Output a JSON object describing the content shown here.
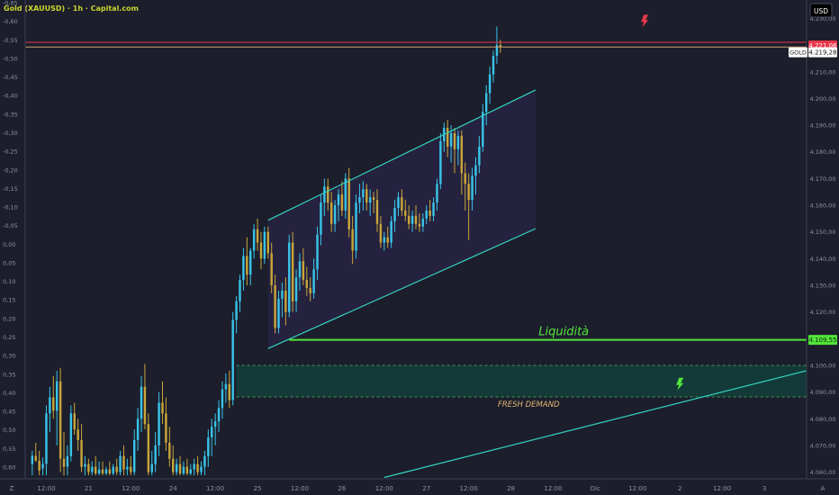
{
  "chart_data": {
    "type": "candlestick",
    "title": "Gold (XAUUSD) · 1h · Capital.com",
    "currency": "USD",
    "symbol_label": "GOLD",
    "colors": {
      "background": "#1c1e2c",
      "up": "#38c4e8",
      "down": "#c9a53a",
      "channel": "#34d3bf",
      "liquidity": "#53e53a",
      "red_line": "#e8374b",
      "tan_line": "#c9a06c",
      "axis_text": "#8b93a6",
      "zone_fill": "#133d3b",
      "zone_border": "#3f9a4f",
      "demand_text": "#e0b871"
    },
    "right_axis": {
      "labels": [
        "4.230,00",
        "4.220,00",
        "4.210,00",
        "4.200,00",
        "4.190,00",
        "4.180,00",
        "4.170,00",
        "4.160,00",
        "4.150,00",
        "4.140,00",
        "4.130,00",
        "4.120,00",
        "4.110,00",
        "4.100,00",
        "4.090,00",
        "4.080,00",
        "4.070,00",
        "4.060,00"
      ],
      "values": [
        4230,
        4220,
        4210,
        4200,
        4190,
        4180,
        4170,
        4160,
        4150,
        4140,
        4130,
        4120,
        4110,
        4100,
        4090,
        4080,
        4070,
        4060
      ],
      "range": [
        4057.5,
        4236.9
      ]
    },
    "left_axis": {
      "labels": [
        "-0,65",
        "-0,60",
        "-0,55",
        "-0,50",
        "-0,45",
        "-0,40",
        "-0,35",
        "-0,30",
        "-0,25",
        "-0,20",
        "-0,15",
        "-0,10",
        "-0,05",
        "0,00",
        "0,05",
        "0,10",
        "0,15",
        "0,20",
        "0,25",
        "0,30",
        "0,35",
        "0,40",
        "0,45",
        "0,50",
        "0,55",
        "0,60"
      ],
      "unit": "%"
    },
    "time_axis": {
      "labels": [
        "12:00",
        "21",
        "12:00",
        "24",
        "12:00",
        "25",
        "12:00",
        "26",
        "12:00",
        "27",
        "12:00",
        "28",
        "12:00",
        "Dic",
        "12:00",
        "2",
        "12:00",
        "3"
      ],
      "hours_from_start": [
        0,
        12,
        24,
        36,
        48,
        60,
        72,
        84,
        96,
        108,
        120,
        132,
        144,
        156,
        168,
        180,
        192,
        204
      ],
      "view_hours": [
        -6,
        216
      ]
    },
    "price_tags": {
      "red": "4.221,06",
      "current": "4.219,28",
      "liquidity": "4.109,55"
    },
    "levels": {
      "red_line": 4221.06,
      "current": 4219.28,
      "liquidity": 4109.55
    },
    "liquidity_label": "Liquidità",
    "liquidity_start_hour": 69,
    "demand_zone": {
      "label": "FRESH DEMAND",
      "top": 4100.0,
      "bottom": 4088.2,
      "start_hour": 54
    },
    "channel": {
      "upper": [
        [
          63,
          4154.4
        ],
        [
          139,
          4203.2
        ]
      ],
      "lower": [
        [
          63,
          4106.3
        ],
        [
          139,
          4151.2
        ]
      ]
    },
    "support_line": [
      [
        96,
        4058.0
      ],
      [
        216,
        4098.0
      ]
    ],
    "bolts": {
      "sell_price": 4229.0,
      "sell_hour": 170,
      "buy_price": 4093.0,
      "buy_hour": 180
    },
    "candles": [
      {
        "t": -4,
        "o": 4063.0,
        "h": 4068.0,
        "l": 4058.8,
        "c": 4066.1
      },
      {
        "t": -3,
        "o": 4066.1,
        "h": 4071.0,
        "l": 4063.8,
        "c": 4064.3
      },
      {
        "t": -2,
        "o": 4064.3,
        "h": 4068.0,
        "l": 4058.8,
        "c": 4060.6
      },
      {
        "t": -1,
        "o": 4061.4,
        "h": 4065.5,
        "l": 4058.8,
        "c": 4063.1
      },
      {
        "t": 0,
        "o": 4063.1,
        "h": 4085.0,
        "l": 4058.8,
        "c": 4082.0
      },
      {
        "t": 1,
        "o": 4082.0,
        "h": 4092.0,
        "l": 4075.0,
        "c": 4088.0
      },
      {
        "t": 2,
        "o": 4088.0,
        "h": 4096.0,
        "l": 4080.0,
        "c": 4083.0
      },
      {
        "t": 3,
        "o": 4083.0,
        "h": 4098.0,
        "l": 4070.0,
        "c": 4094.0
      },
      {
        "t": 4,
        "o": 4094.0,
        "h": 4099.0,
        "l": 4060.0,
        "c": 4065.0
      },
      {
        "t": 5,
        "o": 4065.0,
        "h": 4075.0,
        "l": 4058.8,
        "c": 4062.0
      },
      {
        "t": 6,
        "o": 4062.0,
        "h": 4070.0,
        "l": 4058.8,
        "c": 4066.0
      },
      {
        "t": 7,
        "o": 4066.0,
        "h": 4085.0,
        "l": 4064.0,
        "c": 4082.0
      },
      {
        "t": 8,
        "o": 4082.0,
        "h": 4086.0,
        "l": 4074.0,
        "c": 4076.0
      },
      {
        "t": 9,
        "o": 4076.0,
        "h": 4080.0,
        "l": 4068.0,
        "c": 4072.0
      },
      {
        "t": 10,
        "o": 4072.0,
        "h": 4078.0,
        "l": 4060.0,
        "c": 4062.0
      },
      {
        "t": 11,
        "o": 4062.0,
        "h": 4066.0,
        "l": 4058.8,
        "c": 4063.0
      },
      {
        "t": 12,
        "o": 4063.0,
        "h": 4065.0,
        "l": 4058.8,
        "c": 4060.0
      },
      {
        "t": 13,
        "o": 4060.0,
        "h": 4064.0,
        "l": 4058.8,
        "c": 4062.0
      },
      {
        "t": 14,
        "o": 4062.0,
        "h": 4066.0,
        "l": 4058.8,
        "c": 4059.5
      },
      {
        "t": 15,
        "o": 4059.5,
        "h": 4064.0,
        "l": 4058.8,
        "c": 4061.0
      },
      {
        "t": 16,
        "o": 4061.0,
        "h": 4064.0,
        "l": 4058.8,
        "c": 4059.5
      },
      {
        "t": 17,
        "o": 4059.5,
        "h": 4062.0,
        "l": 4058.8,
        "c": 4061.0
      },
      {
        "t": 18,
        "o": 4061.0,
        "h": 4064.0,
        "l": 4058.8,
        "c": 4059.5
      },
      {
        "t": 19,
        "o": 4059.5,
        "h": 4063.0,
        "l": 4058.8,
        "c": 4062.0
      },
      {
        "t": 20,
        "o": 4062.0,
        "h": 4065.0,
        "l": 4058.8,
        "c": 4060.0
      },
      {
        "t": 21,
        "o": 4060.0,
        "h": 4068.0,
        "l": 4058.8,
        "c": 4066.0
      },
      {
        "t": 22,
        "o": 4066.0,
        "h": 4070.0,
        "l": 4058.8,
        "c": 4061.0
      },
      {
        "t": 23,
        "o": 4061.0,
        "h": 4065.0,
        "l": 4058.8,
        "c": 4062.0
      },
      {
        "t": 24,
        "o": 4062.0,
        "h": 4066.0,
        "l": 4058.8,
        "c": 4060.0
      },
      {
        "t": 25,
        "o": 4060.0,
        "h": 4076.0,
        "l": 4058.8,
        "c": 4072.0
      },
      {
        "t": 26,
        "o": 4072.0,
        "h": 4084.0,
        "l": 4068.0,
        "c": 4080.0
      },
      {
        "t": 27,
        "o": 4080.0,
        "h": 4096.0,
        "l": 4075.0,
        "c": 4092.0
      },
      {
        "t": 28,
        "o": 4092.0,
        "h": 4100.5,
        "l": 4076.0,
        "c": 4078.0
      },
      {
        "t": 29,
        "o": 4078.0,
        "h": 4082.0,
        "l": 4058.8,
        "c": 4060.0
      },
      {
        "t": 30,
        "o": 4060.0,
        "h": 4068.0,
        "l": 4058.8,
        "c": 4063.0
      },
      {
        "t": 31,
        "o": 4063.0,
        "h": 4075.0,
        "l": 4060.0,
        "c": 4070.0
      },
      {
        "t": 32,
        "o": 4070.0,
        "h": 4090.0,
        "l": 4066.0,
        "c": 4086.0
      },
      {
        "t": 33,
        "o": 4086.0,
        "h": 4094.0,
        "l": 4078.0,
        "c": 4082.0
      },
      {
        "t": 34,
        "o": 4082.0,
        "h": 4088.0,
        "l": 4068.0,
        "c": 4071.0
      },
      {
        "t": 35,
        "o": 4071.0,
        "h": 4077.0,
        "l": 4062.0,
        "c": 4065.0
      },
      {
        "t": 36,
        "o": 4065.0,
        "h": 4070.0,
        "l": 4058.8,
        "c": 4060.0
      },
      {
        "t": 37,
        "o": 4060.0,
        "h": 4065.0,
        "l": 4058.8,
        "c": 4063.0
      },
      {
        "t": 38,
        "o": 4063.0,
        "h": 4066.0,
        "l": 4058.8,
        "c": 4059.5
      },
      {
        "t": 39,
        "o": 4059.5,
        "h": 4064.0,
        "l": 4058.8,
        "c": 4062.0
      },
      {
        "t": 40,
        "o": 4062.0,
        "h": 4065.0,
        "l": 4058.8,
        "c": 4059.5
      },
      {
        "t": 41,
        "o": 4059.5,
        "h": 4063.0,
        "l": 4058.8,
        "c": 4061.0
      },
      {
        "t": 42,
        "o": 4061.0,
        "h": 4065.0,
        "l": 4058.8,
        "c": 4063.0
      },
      {
        "t": 43,
        "o": 4063.0,
        "h": 4066.0,
        "l": 4058.8,
        "c": 4060.0
      },
      {
        "t": 44,
        "o": 4060.0,
        "h": 4064.0,
        "l": 4058.8,
        "c": 4062.0
      },
      {
        "t": 45,
        "o": 4062.0,
        "h": 4068.0,
        "l": 4058.8,
        "c": 4066.0
      },
      {
        "t": 46,
        "o": 4066.0,
        "h": 4076.0,
        "l": 4062.0,
        "c": 4073.0
      },
      {
        "t": 47,
        "o": 4073.0,
        "h": 4080.0,
        "l": 4066.0,
        "c": 4077.0
      },
      {
        "t": 48,
        "o": 4077.0,
        "h": 4082.0,
        "l": 4070.0,
        "c": 4079.0
      },
      {
        "t": 49,
        "o": 4079.0,
        "h": 4087.0,
        "l": 4075.0,
        "c": 4084.0
      },
      {
        "t": 50,
        "o": 4084.0,
        "h": 4094.0,
        "l": 4080.0,
        "c": 4091.0
      },
      {
        "t": 51,
        "o": 4091.0,
        "h": 4097.0,
        "l": 4086.0,
        "c": 4093.0
      },
      {
        "t": 52,
        "o": 4093.0,
        "h": 4098.0,
        "l": 4084.0,
        "c": 4087.0
      },
      {
        "t": 53,
        "o": 4087.0,
        "h": 4120.0,
        "l": 4085.0,
        "c": 4117.0
      },
      {
        "t": 54,
        "o": 4117.0,
        "h": 4126.0,
        "l": 4112.0,
        "c": 4124.0
      },
      {
        "t": 55,
        "o": 4124.0,
        "h": 4134.0,
        "l": 4120.0,
        "c": 4132.0
      },
      {
        "t": 56,
        "o": 4132.0,
        "h": 4144.0,
        "l": 4128.0,
        "c": 4141.0
      },
      {
        "t": 57,
        "o": 4141.0,
        "h": 4148.0,
        "l": 4130.0,
        "c": 4134.0
      },
      {
        "t": 58,
        "o": 4134.0,
        "h": 4144.0,
        "l": 4130.0,
        "c": 4143.0
      },
      {
        "t": 59,
        "o": 4143.0,
        "h": 4153.0,
        "l": 4140.0,
        "c": 4151.0
      },
      {
        "t": 60,
        "o": 4151.0,
        "h": 4155.0,
        "l": 4143.0,
        "c": 4146.0
      },
      {
        "t": 61,
        "o": 4146.0,
        "h": 4150.0,
        "l": 4136.0,
        "c": 4140.0
      },
      {
        "t": 62,
        "o": 4140.0,
        "h": 4152.0,
        "l": 4138.0,
        "c": 4150.0
      },
      {
        "t": 63,
        "o": 4150.0,
        "h": 4152.0,
        "l": 4140.0,
        "c": 4142.0
      },
      {
        "t": 64,
        "o": 4142.0,
        "h": 4146.0,
        "l": 4127.0,
        "c": 4130.0
      },
      {
        "t": 65,
        "o": 4130.0,
        "h": 4134.0,
        "l": 4112.0,
        "c": 4114.0
      },
      {
        "t": 66,
        "o": 4114.0,
        "h": 4128.0,
        "l": 4112.0,
        "c": 4125.0
      },
      {
        "t": 67,
        "o": 4125.0,
        "h": 4131.0,
        "l": 4118.0,
        "c": 4128.0
      },
      {
        "t": 68,
        "o": 4128.0,
        "h": 4133.0,
        "l": 4115.0,
        "c": 4120.0
      },
      {
        "t": 69,
        "o": 4120.0,
        "h": 4149.0,
        "l": 4118.0,
        "c": 4146.0
      },
      {
        "t": 70,
        "o": 4146.0,
        "h": 4150.0,
        "l": 4120.0,
        "c": 4124.0
      },
      {
        "t": 71,
        "o": 4124.0,
        "h": 4136.0,
        "l": 4120.0,
        "c": 4133.0
      },
      {
        "t": 72,
        "o": 4133.0,
        "h": 4142.0,
        "l": 4128.0,
        "c": 4139.0
      },
      {
        "t": 73,
        "o": 4139.0,
        "h": 4144.0,
        "l": 4130.0,
        "c": 4132.0
      },
      {
        "t": 74,
        "o": 4132.0,
        "h": 4137.0,
        "l": 4126.0,
        "c": 4129.0
      },
      {
        "t": 75,
        "o": 4129.0,
        "h": 4133.0,
        "l": 4124.0,
        "c": 4127.0
      },
      {
        "t": 76,
        "o": 4127.0,
        "h": 4140.0,
        "l": 4125.0,
        "c": 4136.0
      },
      {
        "t": 77,
        "o": 4136.0,
        "h": 4152.0,
        "l": 4132.0,
        "c": 4149.0
      },
      {
        "t": 78,
        "o": 4149.0,
        "h": 4164.0,
        "l": 4145.0,
        "c": 4161.0
      },
      {
        "t": 79,
        "o": 4161.0,
        "h": 4170.0,
        "l": 4156.0,
        "c": 4167.0
      },
      {
        "t": 80,
        "o": 4167.0,
        "h": 4170.0,
        "l": 4158.0,
        "c": 4161.0
      },
      {
        "t": 81,
        "o": 4161.0,
        "h": 4165.0,
        "l": 4150.0,
        "c": 4153.0
      },
      {
        "t": 82,
        "o": 4153.0,
        "h": 4162.0,
        "l": 4150.0,
        "c": 4160.0
      },
      {
        "t": 83,
        "o": 4160.0,
        "h": 4166.0,
        "l": 4154.0,
        "c": 4164.0
      },
      {
        "t": 84,
        "o": 4164.0,
        "h": 4169.0,
        "l": 4156.0,
        "c": 4158.0
      },
      {
        "t": 85,
        "o": 4158.0,
        "h": 4172.0,
        "l": 4155.0,
        "c": 4170.0
      },
      {
        "t": 86,
        "o": 4170.0,
        "h": 4174.0,
        "l": 4148.0,
        "c": 4151.0
      },
      {
        "t": 87,
        "o": 4151.0,
        "h": 4156.0,
        "l": 4138.0,
        "c": 4143.0
      },
      {
        "t": 88,
        "o": 4143.0,
        "h": 4164.0,
        "l": 4140.0,
        "c": 4161.0
      },
      {
        "t": 89,
        "o": 4161.0,
        "h": 4168.0,
        "l": 4157.0,
        "c": 4163.0
      },
      {
        "t": 90,
        "o": 4163.0,
        "h": 4169.0,
        "l": 4158.0,
        "c": 4166.0
      },
      {
        "t": 91,
        "o": 4166.0,
        "h": 4168.0,
        "l": 4158.0,
        "c": 4161.0
      },
      {
        "t": 92,
        "o": 4161.0,
        "h": 4166.0,
        "l": 4156.0,
        "c": 4163.0
      },
      {
        "t": 93,
        "o": 4163.0,
        "h": 4165.0,
        "l": 4157.0,
        "c": 4162.0
      },
      {
        "t": 94,
        "o": 4162.0,
        "h": 4166.0,
        "l": 4150.0,
        "c": 4153.0
      },
      {
        "t": 95,
        "o": 4153.0,
        "h": 4156.0,
        "l": 4144.0,
        "c": 4146.0
      },
      {
        "t": 96,
        "o": 4146.0,
        "h": 4150.0,
        "l": 4143.0,
        "c": 4148.0
      },
      {
        "t": 97,
        "o": 4148.0,
        "h": 4152.0,
        "l": 4144.0,
        "c": 4146.0
      },
      {
        "t": 98,
        "o": 4146.0,
        "h": 4156.0,
        "l": 4144.0,
        "c": 4154.0
      },
      {
        "t": 99,
        "o": 4154.0,
        "h": 4162.0,
        "l": 4150.0,
        "c": 4159.0
      },
      {
        "t": 100,
        "o": 4159.0,
        "h": 4165.0,
        "l": 4156.0,
        "c": 4163.0
      },
      {
        "t": 101,
        "o": 4163.0,
        "h": 4166.0,
        "l": 4156.0,
        "c": 4158.0
      },
      {
        "t": 102,
        "o": 4158.0,
        "h": 4162.0,
        "l": 4154.0,
        "c": 4156.0
      },
      {
        "t": 103,
        "o": 4156.0,
        "h": 4160.0,
        "l": 4151.0,
        "c": 4153.0
      },
      {
        "t": 104,
        "o": 4153.0,
        "h": 4158.0,
        "l": 4150.0,
        "c": 4156.0
      },
      {
        "t": 105,
        "o": 4156.0,
        "h": 4160.0,
        "l": 4151.0,
        "c": 4153.0
      },
      {
        "t": 106,
        "o": 4153.0,
        "h": 4157.0,
        "l": 4150.0,
        "c": 4152.0
      },
      {
        "t": 107,
        "o": 4152.0,
        "h": 4157.0,
        "l": 4150.0,
        "c": 4155.0
      },
      {
        "t": 108,
        "o": 4155.0,
        "h": 4160.0,
        "l": 4153.0,
        "c": 4158.0
      },
      {
        "t": 109,
        "o": 4158.0,
        "h": 4162.0,
        "l": 4154.0,
        "c": 4156.0
      },
      {
        "t": 110,
        "o": 4156.0,
        "h": 4163.0,
        "l": 4154.0,
        "c": 4161.0
      },
      {
        "t": 111,
        "o": 4161.0,
        "h": 4170.0,
        "l": 4158.0,
        "c": 4168.0
      },
      {
        "t": 112,
        "o": 4168.0,
        "h": 4187.0,
        "l": 4166.0,
        "c": 4184.0
      },
      {
        "t": 113,
        "o": 4184.0,
        "h": 4191.0,
        "l": 4180.0,
        "c": 4189.0
      },
      {
        "t": 114,
        "o": 4189.0,
        "h": 4192.0,
        "l": 4178.0,
        "c": 4182.0
      },
      {
        "t": 115,
        "o": 4182.0,
        "h": 4190.0,
        "l": 4176.0,
        "c": 4187.0
      },
      {
        "t": 116,
        "o": 4187.0,
        "h": 4189.0,
        "l": 4172.0,
        "c": 4181.0
      },
      {
        "t": 117,
        "o": 4181.0,
        "h": 4188.0,
        "l": 4175.0,
        "c": 4186.0
      },
      {
        "t": 118,
        "o": 4186.0,
        "h": 4188.0,
        "l": 4164.0,
        "c": 4172.0
      },
      {
        "t": 119,
        "o": 4172.0,
        "h": 4176.0,
        "l": 4158.0,
        "c": 4168.0
      },
      {
        "t": 120,
        "o": 4168.0,
        "h": 4172.0,
        "l": 4147.0,
        "c": 4162.0
      },
      {
        "t": 121,
        "o": 4162.0,
        "h": 4174.0,
        "l": 4158.0,
        "c": 4171.0
      },
      {
        "t": 122,
        "o": 4171.0,
        "h": 4178.0,
        "l": 4164.0,
        "c": 4175.0
      },
      {
        "t": 123,
        "o": 4175.0,
        "h": 4186.0,
        "l": 4172.0,
        "c": 4182.0
      },
      {
        "t": 124,
        "o": 4182.0,
        "h": 4198.0,
        "l": 4180.0,
        "c": 4195.0
      },
      {
        "t": 125,
        "o": 4195.0,
        "h": 4205.0,
        "l": 4190.0,
        "c": 4202.0
      },
      {
        "t": 126,
        "o": 4202.0,
        "h": 4212.0,
        "l": 4198.0,
        "c": 4209.0
      },
      {
        "t": 127,
        "o": 4209.0,
        "h": 4218.0,
        "l": 4206.0,
        "c": 4216.0
      },
      {
        "t": 128,
        "o": 4216.0,
        "h": 4227.0,
        "l": 4213.0,
        "c": 4220.0
      },
      {
        "t": 129,
        "o": 4220.0,
        "h": 4222.0,
        "l": 4217.0,
        "c": 4219.28
      }
    ]
  }
}
